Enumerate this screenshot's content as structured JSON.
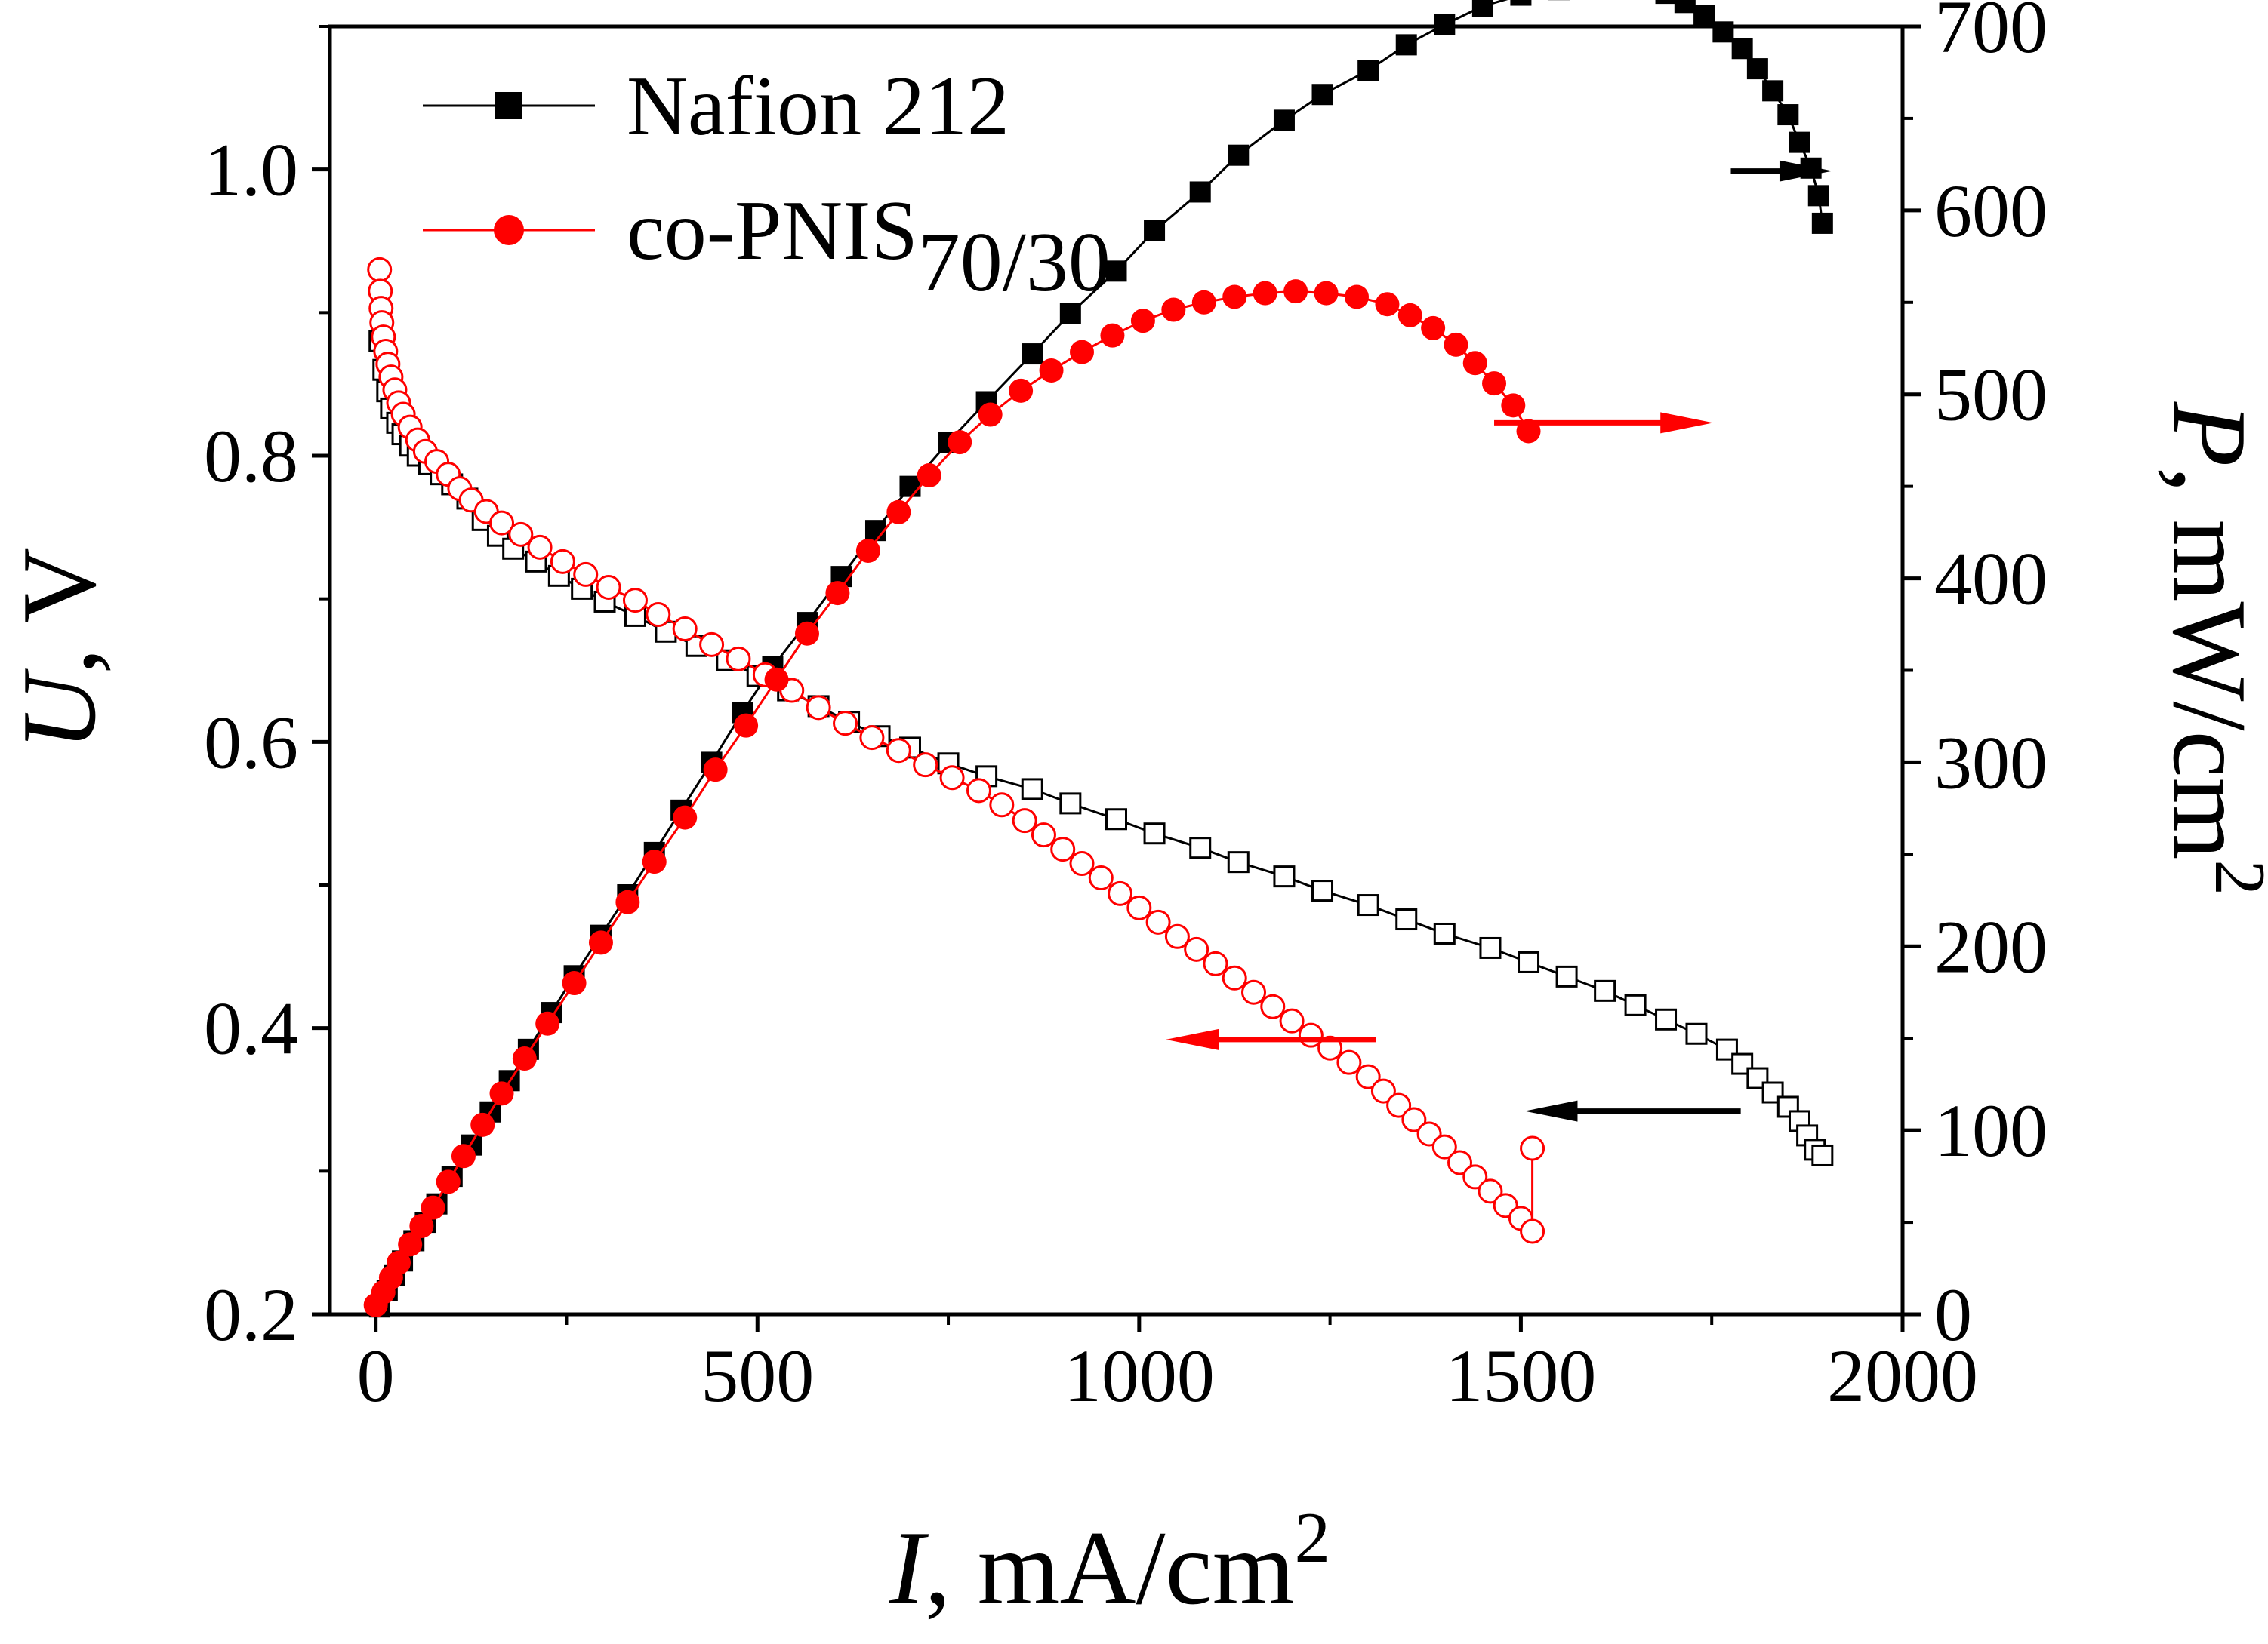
{
  "chart_data": {
    "type": "line",
    "x_axis": {
      "label_var": "I",
      "label_unit": ", mA/cm",
      "label_sup": "2",
      "range": [
        -60,
        2000
      ],
      "ticks": [
        0,
        500,
        1000,
        1500,
        2000
      ],
      "tick_labels": [
        "0",
        "500",
        "1000",
        "1500",
        "2000"
      ],
      "minor_step": 250
    },
    "y_axis_left": {
      "label_var": "U",
      "label_unit": ", V",
      "range": [
        0.2,
        1.1
      ],
      "ticks": [
        0.2,
        0.4,
        0.6,
        0.8,
        1.0
      ],
      "tick_labels": [
        "0.2",
        "0.4",
        "0.6",
        "0.8",
        "1.0"
      ],
      "minor_step": 0.1
    },
    "y_axis_right": {
      "label_var": "P",
      "label_unit": ", mW/cm",
      "label_sup": "2",
      "range": [
        0,
        700
      ],
      "ticks": [
        0,
        100,
        200,
        300,
        400,
        500,
        600,
        700
      ],
      "tick_labels": [
        "0",
        "100",
        "200",
        "300",
        "400",
        "500",
        "600",
        "700"
      ],
      "minor_step": 50
    },
    "legend": {
      "placement": "top-left",
      "entries": [
        {
          "series": "Nafion 212",
          "label": "Nafion 212",
          "sub": ""
        },
        {
          "series": "co-PNIS70/30",
          "label": "co-PNIS",
          "sub": "70/30"
        }
      ]
    },
    "series": [
      {
        "name": "Nafion 212",
        "kind": "voltage",
        "axis": "left",
        "color": "#000000",
        "marker": "square-open",
        "points": [
          [
            5,
            0.88
          ],
          [
            10,
            0.86
          ],
          [
            15,
            0.845
          ],
          [
            20,
            0.833
          ],
          [
            28,
            0.823
          ],
          [
            35,
            0.815
          ],
          [
            45,
            0.807
          ],
          [
            55,
            0.8
          ],
          [
            70,
            0.794
          ],
          [
            85,
            0.787
          ],
          [
            100,
            0.78
          ],
          [
            120,
            0.77
          ],
          [
            140,
            0.755
          ],
          [
            160,
            0.744
          ],
          [
            180,
            0.735
          ],
          [
            210,
            0.726
          ],
          [
            240,
            0.716
          ],
          [
            270,
            0.707
          ],
          [
            300,
            0.698
          ],
          [
            340,
            0.688
          ],
          [
            380,
            0.677
          ],
          [
            420,
            0.667
          ],
          [
            460,
            0.657
          ],
          [
            500,
            0.646
          ],
          [
            540,
            0.636
          ],
          [
            580,
            0.625
          ],
          [
            620,
            0.614
          ],
          [
            660,
            0.604
          ],
          [
            700,
            0.596
          ],
          [
            750,
            0.585
          ],
          [
            800,
            0.576
          ],
          [
            860,
            0.567
          ],
          [
            910,
            0.557
          ],
          [
            970,
            0.546
          ],
          [
            1020,
            0.536
          ],
          [
            1080,
            0.526
          ],
          [
            1130,
            0.516
          ],
          [
            1190,
            0.506
          ],
          [
            1240,
            0.496
          ],
          [
            1300,
            0.486
          ],
          [
            1350,
            0.476
          ],
          [
            1400,
            0.466
          ],
          [
            1460,
            0.456
          ],
          [
            1510,
            0.446
          ],
          [
            1560,
            0.436
          ],
          [
            1610,
            0.426
          ],
          [
            1650,
            0.416
          ],
          [
            1690,
            0.406
          ],
          [
            1730,
            0.396
          ],
          [
            1770,
            0.385
          ],
          [
            1790,
            0.375
          ],
          [
            1810,
            0.365
          ],
          [
            1830,
            0.355
          ],
          [
            1850,
            0.345
          ],
          [
            1865,
            0.335
          ],
          [
            1875,
            0.325
          ],
          [
            1885,
            0.315
          ],
          [
            1895,
            0.311
          ]
        ]
      },
      {
        "name": "Nafion 212",
        "kind": "power",
        "axis": "right",
        "color": "#000000",
        "marker": "square-filled",
        "points": [
          [
            5,
            4
          ],
          [
            15,
            13
          ],
          [
            25,
            21
          ],
          [
            35,
            29
          ],
          [
            50,
            40
          ],
          [
            65,
            50
          ],
          [
            80,
            60
          ],
          [
            100,
            75
          ],
          [
            125,
            92
          ],
          [
            150,
            110
          ],
          [
            175,
            127
          ],
          [
            200,
            144
          ],
          [
            230,
            164
          ],
          [
            260,
            184
          ],
          [
            295,
            206
          ],
          [
            330,
            228
          ],
          [
            365,
            251
          ],
          [
            400,
            274
          ],
          [
            440,
            300
          ],
          [
            480,
            327
          ],
          [
            520,
            352
          ],
          [
            565,
            376
          ],
          [
            610,
            401
          ],
          [
            655,
            426
          ],
          [
            700,
            450
          ],
          [
            750,
            474
          ],
          [
            800,
            496
          ],
          [
            860,
            522
          ],
          [
            910,
            544
          ],
          [
            970,
            567
          ],
          [
            1020,
            589
          ],
          [
            1080,
            610
          ],
          [
            1130,
            630
          ],
          [
            1190,
            649
          ],
          [
            1240,
            663
          ],
          [
            1300,
            676
          ],
          [
            1350,
            690
          ],
          [
            1400,
            701
          ],
          [
            1450,
            711
          ],
          [
            1500,
            717
          ],
          [
            1550,
            720
          ],
          [
            1600,
            723
          ],
          [
            1630,
            723
          ],
          [
            1660,
            722
          ],
          [
            1690,
            718
          ],
          [
            1715,
            713
          ],
          [
            1740,
            706
          ],
          [
            1765,
            697
          ],
          [
            1790,
            688
          ],
          [
            1810,
            677
          ],
          [
            1830,
            665
          ],
          [
            1850,
            652
          ],
          [
            1865,
            637
          ],
          [
            1880,
            623
          ],
          [
            1890,
            608
          ],
          [
            1895,
            593
          ]
        ]
      },
      {
        "name": "co-PNIS70/30",
        "kind": "voltage",
        "axis": "left",
        "color": "#ff0000",
        "marker": "circle-open",
        "points": [
          [
            5,
            0.93
          ],
          [
            6,
            0.915
          ],
          [
            7,
            0.903
          ],
          [
            8,
            0.893
          ],
          [
            10,
            0.883
          ],
          [
            13,
            0.873
          ],
          [
            16,
            0.864
          ],
          [
            20,
            0.855
          ],
          [
            25,
            0.846
          ],
          [
            30,
            0.837
          ],
          [
            36,
            0.829
          ],
          [
            45,
            0.82
          ],
          [
            55,
            0.811
          ],
          [
            65,
            0.803
          ],
          [
            80,
            0.796
          ],
          [
            95,
            0.787
          ],
          [
            110,
            0.777
          ],
          [
            125,
            0.769
          ],
          [
            145,
            0.761
          ],
          [
            165,
            0.753
          ],
          [
            190,
            0.745
          ],
          [
            215,
            0.736
          ],
          [
            245,
            0.726
          ],
          [
            275,
            0.717
          ],
          [
            305,
            0.708
          ],
          [
            340,
            0.699
          ],
          [
            370,
            0.689
          ],
          [
            405,
            0.679
          ],
          [
            440,
            0.668
          ],
          [
            475,
            0.658
          ],
          [
            510,
            0.647
          ],
          [
            545,
            0.636
          ],
          [
            580,
            0.624
          ],
          [
            615,
            0.613
          ],
          [
            650,
            0.603
          ],
          [
            685,
            0.594
          ],
          [
            720,
            0.584
          ],
          [
            755,
            0.575
          ],
          [
            790,
            0.566
          ],
          [
            820,
            0.556
          ],
          [
            850,
            0.545
          ],
          [
            875,
            0.535
          ],
          [
            900,
            0.525
          ],
          [
            925,
            0.515
          ],
          [
            950,
            0.505
          ],
          [
            975,
            0.494
          ],
          [
            1000,
            0.484
          ],
          [
            1025,
            0.474
          ],
          [
            1050,
            0.464
          ],
          [
            1075,
            0.455
          ],
          [
            1100,
            0.445
          ],
          [
            1125,
            0.435
          ],
          [
            1150,
            0.425
          ],
          [
            1175,
            0.415
          ],
          [
            1200,
            0.405
          ],
          [
            1225,
            0.395
          ],
          [
            1250,
            0.386
          ],
          [
            1275,
            0.376
          ],
          [
            1300,
            0.366
          ],
          [
            1320,
            0.356
          ],
          [
            1340,
            0.346
          ],
          [
            1360,
            0.336
          ],
          [
            1380,
            0.326
          ],
          [
            1400,
            0.317
          ],
          [
            1420,
            0.306
          ],
          [
            1440,
            0.296
          ],
          [
            1460,
            0.286
          ],
          [
            1480,
            0.276
          ],
          [
            1500,
            0.267
          ],
          [
            1515,
            0.258
          ],
          [
            1515,
            0.316
          ]
        ]
      },
      {
        "name": "co-PNIS70/30",
        "kind": "power",
        "axis": "right",
        "color": "#ff0000",
        "marker": "circle-filled",
        "points": [
          [
            0,
            5
          ],
          [
            10,
            12
          ],
          [
            20,
            20
          ],
          [
            30,
            28
          ],
          [
            45,
            38
          ],
          [
            60,
            48
          ],
          [
            75,
            58
          ],
          [
            95,
            72
          ],
          [
            115,
            86
          ],
          [
            140,
            103
          ],
          [
            165,
            120
          ],
          [
            195,
            139
          ],
          [
            225,
            158
          ],
          [
            260,
            180
          ],
          [
            295,
            202
          ],
          [
            330,
            224
          ],
          [
            365,
            246
          ],
          [
            405,
            270
          ],
          [
            445,
            296
          ],
          [
            485,
            320
          ],
          [
            525,
            345
          ],
          [
            565,
            370
          ],
          [
            605,
            392
          ],
          [
            645,
            415
          ],
          [
            685,
            436
          ],
          [
            725,
            456
          ],
          [
            765,
            474
          ],
          [
            805,
            489
          ],
          [
            845,
            502
          ],
          [
            885,
            513
          ],
          [
            925,
            523
          ],
          [
            965,
            532
          ],
          [
            1005,
            540
          ],
          [
            1045,
            546
          ],
          [
            1085,
            550
          ],
          [
            1125,
            553
          ],
          [
            1165,
            555
          ],
          [
            1205,
            556
          ],
          [
            1245,
            555
          ],
          [
            1285,
            553
          ],
          [
            1325,
            549
          ],
          [
            1355,
            543
          ],
          [
            1385,
            536
          ],
          [
            1415,
            527
          ],
          [
            1440,
            517
          ],
          [
            1465,
            506
          ],
          [
            1490,
            494
          ],
          [
            1510,
            480
          ]
        ]
      }
    ],
    "arrows": [
      {
        "axis": "left",
        "from": [
          1775,
          0.999
        ],
        "to": [
          1908,
          0.999
        ],
        "color": "#000000"
      },
      {
        "axis": "left",
        "from": [
          1465,
          0.823
        ],
        "to": [
          1752,
          0.823
        ],
        "color": "#ff0000"
      },
      {
        "axis": "left",
        "from": [
          1310,
          0.392
        ],
        "to": [
          1035,
          0.392
        ],
        "color": "#ff0000"
      },
      {
        "axis": "left",
        "from": [
          1788,
          0.342
        ],
        "to": [
          1505,
          0.342
        ],
        "color": "#000000"
      }
    ]
  }
}
